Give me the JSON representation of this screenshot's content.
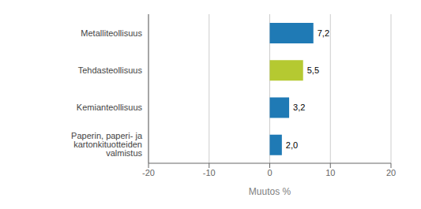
{
  "chart_data": {
    "type": "bar",
    "orientation": "horizontal",
    "categories": [
      "Metalliteollisuus",
      "Tehdasteollisuus",
      "Kemianteollisuus",
      "Paperin, paperi- ja kartonkituotteiden valmistus"
    ],
    "values": [
      7.2,
      5.5,
      3.2,
      2.0
    ],
    "value_labels": [
      "7,2",
      "5,5",
      "3,2",
      "2,0"
    ],
    "data_labels": true,
    "colors": [
      "#1f7ab5",
      "#b5c931",
      "#1f7ab5",
      "#1f7ab5"
    ],
    "xlabel": "Muutos %",
    "xlim": [
      -20,
      20
    ],
    "xticks": [
      -20,
      -10,
      0,
      10,
      20
    ],
    "grid": true
  }
}
